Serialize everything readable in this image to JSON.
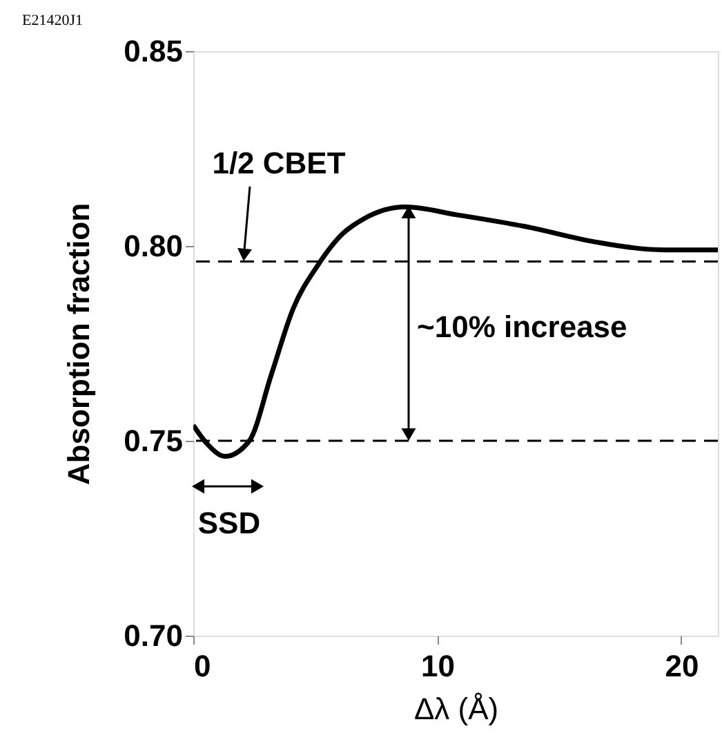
{
  "chart_data": {
    "type": "line",
    "xlabel": "Δλ (Å)",
    "ylabel": "Absorption fraction",
    "x": [
      0,
      0.6,
      1.3,
      2.3,
      3.2,
      4.1,
      5.1,
      6.1,
      7.0,
      8.7,
      10.8,
      13.6,
      16.5,
      19.3,
      21.5
    ],
    "series": [
      {
        "color": "#000000",
        "values": [
          0.754,
          0.749,
          0.746,
          0.75,
          0.767,
          0.784,
          0.795,
          0.803,
          0.807,
          0.81,
          0.808,
          0.805,
          0.801,
          0.799,
          0.799
        ]
      }
    ],
    "xlim": [
      0,
      21.5
    ],
    "ylim": [
      0.7,
      0.85
    ],
    "xticks": [
      0,
      10,
      20
    ],
    "yticks": [
      {
        "value": 0.7,
        "label": "0.70"
      },
      0.75,
      {
        "value": 0.8,
        "label": "0.80"
      },
      0.85
    ],
    "ref_lines": [
      {
        "axis": "y",
        "value": 0.796,
        "label": "1/2 CBET",
        "line_style": "dashed",
        "color": "#000000"
      },
      {
        "axis": "y",
        "value": 0.75,
        "line_style": "dashed",
        "color": "#000000"
      }
    ],
    "annotations": [
      "E21420J1",
      "~10% increase",
      "SSD"
    ],
    "grid": false,
    "marker": "none",
    "line_style": "solid"
  }
}
